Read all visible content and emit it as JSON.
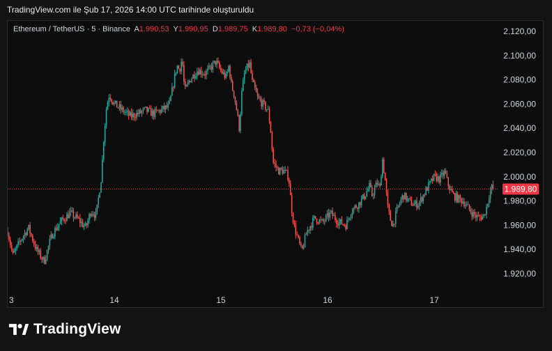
{
  "caption": "TradingView.com ile Şub 17, 2026 14:00 UTC tarihinde oluşturuldu",
  "legend": {
    "symbol": "Ethereum / TetherUS · 5 · Binance",
    "open_label": "A",
    "open": "1.990,53",
    "high_label": "Y",
    "high": "1.990,95",
    "low_label": "D",
    "low": "1.989,75",
    "close_label": "K",
    "close": "1.989,80",
    "change": "−0,73 (−0,04%)"
  },
  "brand": "TradingView",
  "colors": {
    "up": "#26a69a",
    "down": "#ef5350",
    "price_badge": "#f23645",
    "background": "#0d0d0d"
  },
  "chart_data": {
    "type": "candlestick",
    "x_tick_labels": [
      "3",
      "14",
      "15",
      "16",
      "17"
    ],
    "y_tick_labels": [
      "2.120,00",
      "2.100,00",
      "2.080,00",
      "2.060,00",
      "2.040,00",
      "2.020,00",
      "2.000,00",
      "1.980,00",
      "1.960,00",
      "1.940,00",
      "1.920,00"
    ],
    "ylim": [
      1910,
      2130
    ],
    "current_price": 1989.8,
    "current_price_label": "1.989,80",
    "path": [
      [
        0,
        1955
      ],
      [
        2,
        1935
      ],
      [
        5,
        1948
      ],
      [
        8,
        1958
      ],
      [
        11,
        1940
      ],
      [
        14,
        1930
      ],
      [
        17,
        1952
      ],
      [
        20,
        1962
      ],
      [
        24,
        1970
      ],
      [
        27,
        1965
      ],
      [
        30,
        1958
      ],
      [
        32,
        1972
      ],
      [
        34,
        1968
      ],
      [
        36,
        2000
      ],
      [
        37,
        2035
      ],
      [
        38,
        2058
      ],
      [
        39,
        2068
      ],
      [
        41,
        2060
      ],
      [
        44,
        2055
      ],
      [
        47,
        2050
      ],
      [
        50,
        2052
      ],
      [
        53,
        2055
      ],
      [
        56,
        2052
      ],
      [
        59,
        2055
      ],
      [
        62,
        2058
      ],
      [
        64,
        2080
      ],
      [
        65,
        2092
      ],
      [
        66,
        2088
      ],
      [
        67,
        2098
      ],
      [
        68,
        2070
      ],
      [
        70,
        2080
      ],
      [
        73,
        2088
      ],
      [
        76,
        2085
      ],
      [
        78,
        2090
      ],
      [
        80,
        2095
      ],
      [
        82,
        2087
      ],
      [
        84,
        2082
      ],
      [
        85,
        2092
      ],
      [
        86,
        2075
      ],
      [
        87,
        2068
      ],
      [
        88,
        2055
      ],
      [
        89,
        2040
      ],
      [
        90,
        2070
      ],
      [
        91,
        2085
      ],
      [
        92,
        2090
      ],
      [
        93,
        2093
      ],
      [
        94,
        2078
      ],
      [
        95,
        2072
      ],
      [
        96,
        2065
      ],
      [
        98,
        2060
      ],
      [
        100,
        2055
      ],
      [
        101,
        2040
      ],
      [
        102,
        2012
      ],
      [
        104,
        2005
      ],
      [
        106,
        2005
      ],
      [
        108,
        2000
      ],
      [
        109,
        1975
      ],
      [
        110,
        1960
      ],
      [
        112,
        1945
      ],
      [
        113,
        1938
      ],
      [
        115,
        1955
      ],
      [
        118,
        1966
      ],
      [
        121,
        1962
      ],
      [
        124,
        1970
      ],
      [
        127,
        1963
      ],
      [
        130,
        1960
      ],
      [
        132,
        1972
      ],
      [
        135,
        1978
      ],
      [
        137,
        1984
      ],
      [
        139,
        1992
      ],
      [
        140,
        1985
      ],
      [
        142,
        1995
      ],
      [
        143,
        1990
      ],
      [
        144,
        2015
      ],
      [
        145,
        1998
      ],
      [
        146,
        1975
      ],
      [
        147,
        1965
      ],
      [
        148,
        1960
      ],
      [
        150,
        1975
      ],
      [
        152,
        1985
      ],
      [
        154,
        1980
      ],
      [
        156,
        1977
      ],
      [
        158,
        1978
      ],
      [
        161,
        1990
      ],
      [
        164,
        2000
      ],
      [
        166,
        1998
      ],
      [
        168,
        2004
      ],
      [
        169,
        1995
      ],
      [
        171,
        1985
      ],
      [
        173,
        1982
      ],
      [
        175,
        1980
      ],
      [
        177,
        1974
      ],
      [
        179,
        1969
      ],
      [
        181,
        1966
      ],
      [
        183,
        1968
      ],
      [
        184,
        1975
      ],
      [
        185,
        1985
      ],
      [
        186,
        1991
      ],
      [
        186.5,
        1990
      ]
    ],
    "x_domain": [
      0,
      188
    ]
  }
}
